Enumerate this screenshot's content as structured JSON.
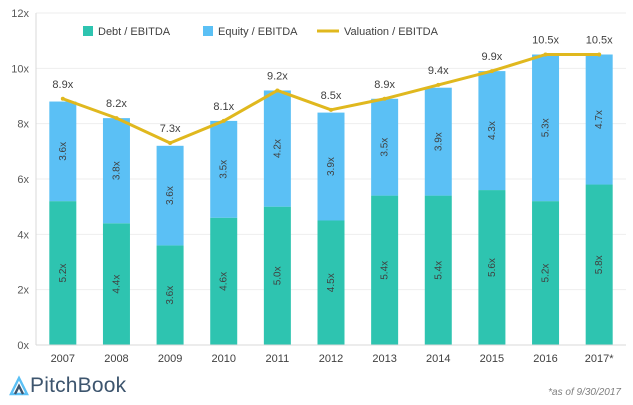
{
  "chart_data": {
    "type": "bar",
    "stacked": true,
    "categories": [
      "2007",
      "2008",
      "2009",
      "2010",
      "2011",
      "2012",
      "2013",
      "2014",
      "2015",
      "2016",
      "2017*"
    ],
    "series": [
      {
        "name": "Debt / EBITDA",
        "kind": "bar",
        "color": "#2ec4b0",
        "values": [
          5.2,
          4.4,
          3.6,
          4.6,
          5.0,
          4.5,
          5.4,
          5.4,
          5.6,
          5.2,
          5.8
        ],
        "labels": [
          "5.2x",
          "4.4x",
          "3.6x",
          "4.6x",
          "5.0x",
          "4.5x",
          "5.4x",
          "5.4x",
          "5.6x",
          "5.2x",
          "5.8x"
        ]
      },
      {
        "name": "Equity / EBITDA",
        "kind": "bar",
        "color": "#5bc0f5",
        "values": [
          3.6,
          3.8,
          3.6,
          3.5,
          4.2,
          3.9,
          3.5,
          3.9,
          4.3,
          5.3,
          4.7
        ],
        "labels": [
          "3.6x",
          "3.8x",
          "3.6x",
          "3.5x",
          "4.2x",
          "3.9x",
          "3.5x",
          "3.9x",
          "4.3x",
          "5.3x",
          "4.7x"
        ]
      },
      {
        "name": "Valuation / EBITDA",
        "kind": "line",
        "color": "#e0b81e",
        "values": [
          8.9,
          8.2,
          7.3,
          8.1,
          9.2,
          8.5,
          8.9,
          9.4,
          9.9,
          10.5,
          10.5
        ],
        "labels": [
          "8.9x",
          "8.2x",
          "7.3x",
          "8.1x",
          "9.2x",
          "8.5x",
          "8.9x",
          "9.4x",
          "9.9x",
          "10.5x",
          "10.5x"
        ]
      }
    ],
    "ylim": [
      0,
      12
    ],
    "yticks": [
      "0x",
      "2x",
      "4x",
      "6x",
      "8x",
      "10x",
      "12x"
    ],
    "yticks_values": [
      0,
      2,
      4,
      6,
      8,
      10,
      12
    ],
    "grid": true,
    "legend": "top",
    "axis_color": "#d9d9d9",
    "grid_color": "#eeeeee"
  },
  "branding": {
    "logo_text": "PitchBook",
    "logo_color": "#3d556e"
  },
  "footnote": "*as of 9/30/2017"
}
